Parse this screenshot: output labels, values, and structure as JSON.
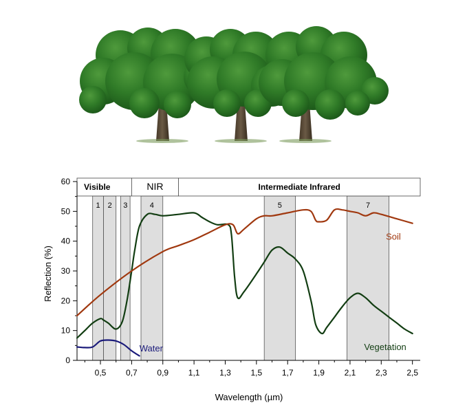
{
  "chart_data": {
    "type": "line",
    "xlabel": "Wavelength (µm)",
    "ylabel": "Reflection (%)",
    "xlim": [
      0.35,
      2.55
    ],
    "ylim": [
      0,
      60
    ],
    "x_ticks": [
      {
        "v": 0.5,
        "label": "0,5"
      },
      {
        "v": 0.7,
        "label": "0,7"
      },
      {
        "v": 0.9,
        "label": "0,9"
      },
      {
        "v": 1.1,
        "label": "1,1"
      },
      {
        "v": 1.3,
        "label": "1,3"
      },
      {
        "v": 1.5,
        "label": "1,5"
      },
      {
        "v": 1.7,
        "label": "1,7"
      },
      {
        "v": 1.9,
        "label": "1,9"
      },
      {
        "v": 2.1,
        "label": "2,1"
      },
      {
        "v": 2.3,
        "label": "2,3"
      },
      {
        "v": 2.5,
        "label": "2,5"
      }
    ],
    "y_ticks": [
      {
        "v": 0,
        "label": "0"
      },
      {
        "v": 10,
        "label": "10"
      },
      {
        "v": 20,
        "label": "20"
      },
      {
        "v": 30,
        "label": "30"
      },
      {
        "v": 40,
        "label": "40"
      },
      {
        "v": 50,
        "label": "50"
      },
      {
        "v": 60,
        "label": "60"
      }
    ],
    "regions": [
      {
        "label": "Visible",
        "from": 0.35,
        "to": 0.7
      },
      {
        "label": "NIR",
        "from": 0.7,
        "to": 1.0
      },
      {
        "label": "Intermediate Infrared",
        "from": 1.0,
        "to": 2.55
      }
    ],
    "bands": [
      {
        "label": "1",
        "from": 0.45,
        "to": 0.52
      },
      {
        "label": "2",
        "from": 0.52,
        "to": 0.6
      },
      {
        "label": "3",
        "from": 0.63,
        "to": 0.69
      },
      {
        "label": "4",
        "from": 0.76,
        "to": 0.9
      },
      {
        "label": "5",
        "from": 1.55,
        "to": 1.75
      },
      {
        "label": "7",
        "from": 2.08,
        "to": 2.35
      }
    ],
    "series": [
      {
        "name": "Vegetation",
        "color": "#123d12",
        "x": [
          0.35,
          0.4,
          0.45,
          0.5,
          0.52,
          0.55,
          0.6,
          0.64,
          0.67,
          0.7,
          0.72,
          0.75,
          0.8,
          0.85,
          0.9,
          1.0,
          1.1,
          1.15,
          1.2,
          1.25,
          1.32,
          1.34,
          1.36,
          1.38,
          1.42,
          1.5,
          1.55,
          1.6,
          1.65,
          1.7,
          1.75,
          1.8,
          1.85,
          1.88,
          1.92,
          1.95,
          2.0,
          2.05,
          2.1,
          2.15,
          2.2,
          2.25,
          2.3,
          2.35,
          2.4,
          2.45,
          2.5
        ],
        "y": [
          7.5,
          10,
          12.5,
          14,
          13.5,
          12.5,
          10.5,
          13,
          20,
          30,
          37,
          45,
          49,
          49,
          48.5,
          49,
          49.5,
          48,
          46.5,
          45.5,
          45.5,
          42,
          28,
          21,
          23,
          29,
          33,
          37,
          38,
          36,
          34,
          30,
          20,
          12,
          9,
          11,
          14.5,
          18,
          21,
          22.5,
          21,
          18.5,
          16.5,
          14.5,
          12.5,
          10.5,
          9
        ]
      },
      {
        "name": "Soil",
        "color": "#a0380f",
        "x": [
          0.35,
          0.5,
          0.7,
          0.9,
          1.0,
          1.1,
          1.2,
          1.3,
          1.35,
          1.38,
          1.42,
          1.5,
          1.55,
          1.6,
          1.7,
          1.8,
          1.85,
          1.88,
          1.9,
          1.95,
          2.0,
          2.05,
          2.1,
          2.15,
          2.2,
          2.25,
          2.3,
          2.4,
          2.5
        ],
        "y": [
          15,
          22,
          30,
          36.5,
          38.5,
          40.5,
          43,
          45.5,
          45.5,
          42.5,
          44,
          47.5,
          48.5,
          48.5,
          49.5,
          50.5,
          50,
          47,
          46.5,
          47,
          50.5,
          50.5,
          50,
          49.5,
          48.5,
          49.5,
          49,
          47.5,
          46
        ]
      },
      {
        "name": "Water",
        "color": "#1a1a7a",
        "x": [
          0.35,
          0.4,
          0.45,
          0.5,
          0.55,
          0.6,
          0.65,
          0.7,
          0.75
        ],
        "y": [
          4.5,
          4.3,
          4.5,
          6.5,
          6.8,
          6.5,
          5.3,
          3.2,
          1.5
        ]
      }
    ],
    "series_labels": [
      {
        "text": "Soil",
        "x": 2.33,
        "y": 40.5,
        "color": "#a0380f"
      },
      {
        "text": "Water",
        "x": 0.75,
        "y": 3,
        "color": "#1a1a7a"
      },
      {
        "text": "Vegetation",
        "x": 2.19,
        "y": 3.5,
        "color": "#123d12"
      }
    ],
    "grid": false,
    "legend": "none"
  }
}
